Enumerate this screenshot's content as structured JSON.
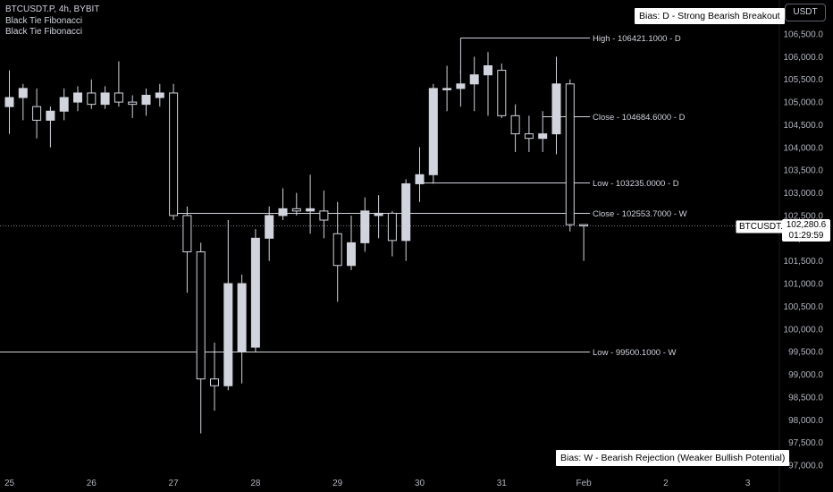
{
  "header": {
    "symbol_line": "BTCUSDT.P, 4h, BYBIT",
    "indicators": [
      "Black Tie Fibonacci",
      "Black Tie Fibonacci"
    ],
    "currency": "USDT"
  },
  "bias_boxes": {
    "daily": "Bias: D - Strong Bearish Breakout",
    "weekly": "Bias: W - Bearish Rejection (Weaker Bullish Potential)"
  },
  "price_scale": {
    "symbol_tag": "BTCUSDT.P",
    "last_price": "102,280.6",
    "countdown": "01:29:59"
  },
  "colors": {
    "background": "#000000",
    "candle_up": "#d1d4dc",
    "candle_down": "#000000",
    "candle_outline": "#d1d4dc",
    "level_line": "#d1d4dc"
  },
  "chart_data": {
    "type": "candlestick",
    "interval": "4h",
    "ylim": [
      96800,
      107100
    ],
    "y_ticks": [
      "97,000.0",
      "97,500.0",
      "98,000.0",
      "98,500.0",
      "99,000.0",
      "99,500.0",
      "100,000.0",
      "100,500.0",
      "101,000.0",
      "101,500.0",
      "102,000.0",
      "102,500.0",
      "103,000.0",
      "103,500.0",
      "104,000.0",
      "104,500.0",
      "105,000.0",
      "105,500.0",
      "106,000.0",
      "106,500.0"
    ],
    "y_tick_values": [
      97000,
      97500,
      98000,
      98500,
      99000,
      99500,
      100000,
      100500,
      101000,
      101500,
      102000,
      102500,
      103000,
      103500,
      104000,
      104500,
      105000,
      105500,
      106000,
      106500
    ],
    "x_ticks": [
      {
        "label": "25",
        "bar": 0
      },
      {
        "label": "26",
        "bar": 6
      },
      {
        "label": "27",
        "bar": 12
      },
      {
        "label": "28",
        "bar": 18
      },
      {
        "label": "29",
        "bar": 24
      },
      {
        "label": "30",
        "bar": 30
      },
      {
        "label": "31",
        "bar": 36
      },
      {
        "label": "Feb",
        "bar": 42
      },
      {
        "label": "2",
        "bar": 48
      },
      {
        "label": "3",
        "bar": 54
      }
    ],
    "levels": [
      {
        "label": "High - 106421.1000 - D",
        "price": 106421.1,
        "start_bar": 33
      },
      {
        "label": "Close - 104684.6000 - D",
        "price": 104684.6,
        "start_bar": 39
      },
      {
        "label": "Low - 103235.0000 - D",
        "price": 103235.0,
        "start_bar": 30
      },
      {
        "label": "Close - 102553.7000 - W",
        "price": 102553.7,
        "start_bar": 12
      },
      {
        "label": "Low - 99500.1000 - W",
        "price": 99500.1,
        "start_bar": -1
      }
    ],
    "last_price": 102280.6,
    "candles": [
      {
        "o": 104900,
        "h": 105700,
        "l": 104300,
        "c": 105100
      },
      {
        "o": 105100,
        "h": 105400,
        "l": 104600,
        "c": 105300
      },
      {
        "o": 104900,
        "h": 105300,
        "l": 104200,
        "c": 104600
      },
      {
        "o": 104600,
        "h": 104900,
        "l": 104000,
        "c": 104800
      },
      {
        "o": 104800,
        "h": 105300,
        "l": 104600,
        "c": 105100
      },
      {
        "o": 105000,
        "h": 105350,
        "l": 104800,
        "c": 105200
      },
      {
        "o": 105200,
        "h": 105500,
        "l": 104850,
        "c": 104950
      },
      {
        "o": 104950,
        "h": 105350,
        "l": 104850,
        "c": 105200
      },
      {
        "o": 105200,
        "h": 105900,
        "l": 104900,
        "c": 105000
      },
      {
        "o": 105000,
        "h": 105150,
        "l": 104650,
        "c": 104950
      },
      {
        "o": 104950,
        "h": 105300,
        "l": 104700,
        "c": 105150
      },
      {
        "o": 105100,
        "h": 105400,
        "l": 104900,
        "c": 105200
      },
      {
        "o": 105200,
        "h": 105400,
        "l": 102400,
        "c": 102500
      },
      {
        "o": 102500,
        "h": 102700,
        "l": 100800,
        "c": 101700
      },
      {
        "o": 101700,
        "h": 101900,
        "l": 97700,
        "c": 98900
      },
      {
        "o": 98900,
        "h": 99700,
        "l": 98200,
        "c": 98750
      },
      {
        "o": 98750,
        "h": 102400,
        "l": 98650,
        "c": 101000
      },
      {
        "o": 99500,
        "h": 101200,
        "l": 98800,
        "c": 101000
      },
      {
        "o": 99600,
        "h": 102200,
        "l": 99500,
        "c": 102000
      },
      {
        "o": 102000,
        "h": 102700,
        "l": 101500,
        "c": 102500
      },
      {
        "o": 102500,
        "h": 103100,
        "l": 102400,
        "c": 102650
      },
      {
        "o": 102650,
        "h": 103000,
        "l": 102500,
        "c": 102600
      },
      {
        "o": 102600,
        "h": 103400,
        "l": 102100,
        "c": 102650
      },
      {
        "o": 102600,
        "h": 103050,
        "l": 102000,
        "c": 102400
      },
      {
        "o": 102100,
        "h": 102800,
        "l": 100600,
        "c": 101400
      },
      {
        "o": 101400,
        "h": 102500,
        "l": 101300,
        "c": 101900
      },
      {
        "o": 101900,
        "h": 102900,
        "l": 101700,
        "c": 102600
      },
      {
        "o": 102500,
        "h": 102950,
        "l": 102000,
        "c": 102550
      },
      {
        "o": 102550,
        "h": 102600,
        "l": 101600,
        "c": 101950
      },
      {
        "o": 101950,
        "h": 103300,
        "l": 101500,
        "c": 103200
      },
      {
        "o": 103200,
        "h": 103900,
        "l": 102800,
        "c": 103400
      },
      {
        "o": 103400,
        "h": 105400,
        "l": 103200,
        "c": 105300
      },
      {
        "o": 105300,
        "h": 105800,
        "l": 104800,
        "c": 105300
      },
      {
        "o": 105300,
        "h": 105700,
        "l": 104900,
        "c": 105400
      },
      {
        "o": 105400,
        "h": 106000,
        "l": 104800,
        "c": 105600
      },
      {
        "o": 105600,
        "h": 106100,
        "l": 104700,
        "c": 105800
      },
      {
        "o": 105700,
        "h": 105850,
        "l": 104650,
        "c": 104700
      },
      {
        "o": 104700,
        "h": 104950,
        "l": 103900,
        "c": 104300
      },
      {
        "o": 104300,
        "h": 104700,
        "l": 103900,
        "c": 104200
      },
      {
        "o": 104200,
        "h": 104800,
        "l": 103900,
        "c": 104300
      },
      {
        "o": 104300,
        "h": 106000,
        "l": 103850,
        "c": 105400
      },
      {
        "o": 105400,
        "h": 105500,
        "l": 102150,
        "c": 102300
      },
      {
        "o": 102300,
        "h": 102300,
        "l": 101500,
        "c": 102280
      }
    ]
  }
}
